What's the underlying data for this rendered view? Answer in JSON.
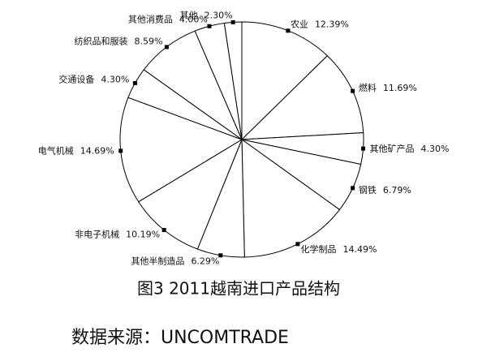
{
  "chart_data": {
    "type": "pie",
    "title": "图3  2011越南进口产品结构",
    "source": "数据来源：UNCOMTRADE",
    "categories": [
      "农业",
      "燃料",
      "其他矿产品",
      "钢铁",
      "化学制品",
      "其他半制造品",
      "非电子机械",
      "电气机械",
      "交通设备",
      "纺织品和服装",
      "其他消费品",
      "其他"
    ],
    "values": [
      12.39,
      11.69,
      4.3,
      6.79,
      14.49,
      6.29,
      10.19,
      14.69,
      4.3,
      8.59,
      4.0,
      2.3
    ],
    "value_labels": [
      "12.39%",
      "11.69%",
      "4.30%",
      "6.79%",
      "14.49%",
      "6.29%",
      "10.19%",
      "14.69%",
      "4.30%",
      "8.59%",
      "4.00%",
      "2.30%"
    ],
    "color": "#ffffff"
  }
}
